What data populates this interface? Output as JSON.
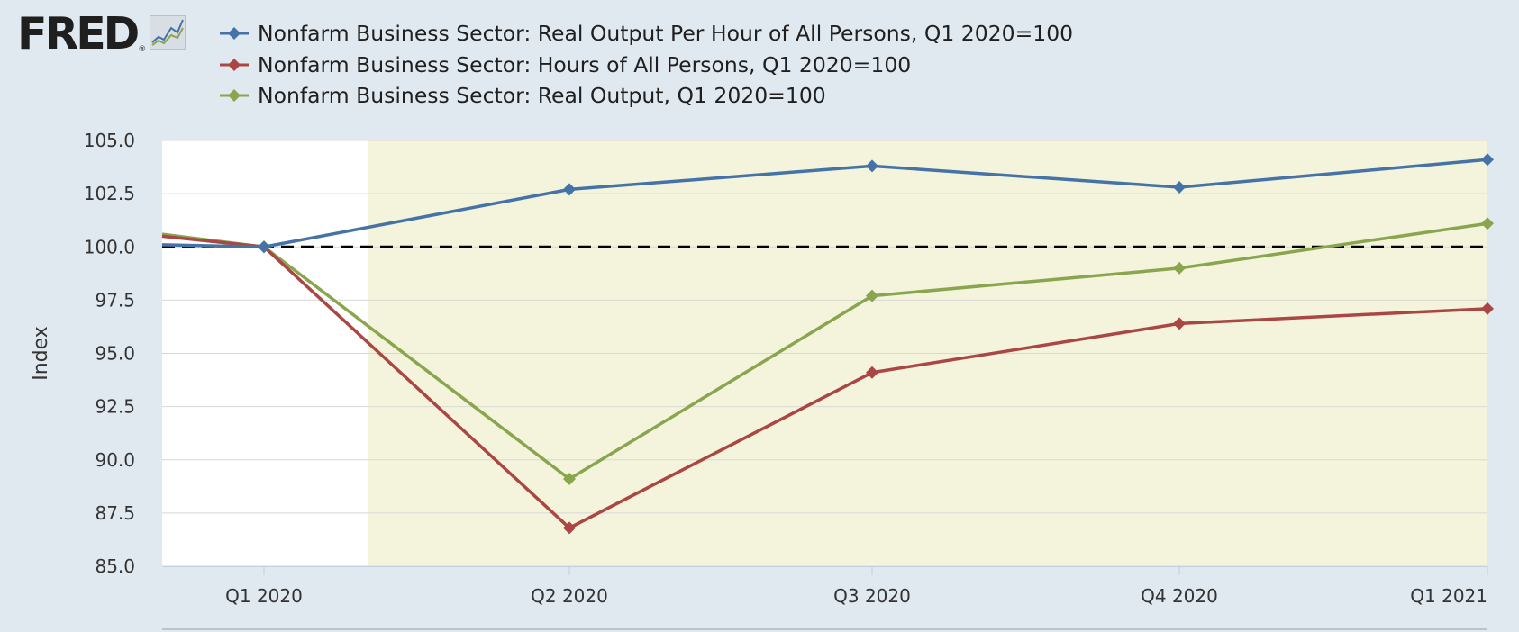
{
  "app": {
    "logo_text": "FRED",
    "logo_mark": "®",
    "logo_icon": "chart-line-icon"
  },
  "colors": {
    "background": "#e1e9f0",
    "plot_background": "#ffffff",
    "recession_shade": "#f4f4dc",
    "grid": "#d8d8d8",
    "series_blue": "#4572a7",
    "series_red": "#aa4643",
    "series_green": "#89a54e",
    "baseline": "#000000"
  },
  "chart_data": {
    "type": "line",
    "x": [
      "Q1 2020",
      "Q2 2020",
      "Q3 2020",
      "Q4 2020",
      "Q1 2021"
    ],
    "xlim": [
      "Q4 2019 (partial)",
      "Q1 2021"
    ],
    "ylabel": "Index",
    "ylim": [
      85,
      105
    ],
    "yticks": [
      "85.0",
      "87.5",
      "90.0",
      "92.5",
      "95.0",
      "97.5",
      "100.0",
      "102.5",
      "105.0"
    ],
    "grid": true,
    "legend_position": "top",
    "series": [
      {
        "name": "Nonfarm Business Sector: Real Output Per Hour of All Persons, Q1 2020=100",
        "color": "#4572a7",
        "lead_in": 100.1,
        "values": [
          100.0,
          102.7,
          103.8,
          102.8,
          104.1
        ]
      },
      {
        "name": "Nonfarm Business Sector: Hours of All Persons, Q1 2020=100",
        "color": "#aa4643",
        "lead_in": 100.5,
        "values": [
          100.0,
          86.8,
          94.1,
          96.4,
          97.1
        ]
      },
      {
        "name": "Nonfarm Business Sector: Real Output, Q1 2020=100",
        "color": "#89a54e",
        "lead_in": 100.6,
        "values": [
          100.0,
          89.1,
          97.7,
          99.0,
          101.1
        ]
      }
    ],
    "reference_line": {
      "value": 100.0,
      "style": "dashed"
    },
    "shaded_region": {
      "label": "recession",
      "from": "Q1 2020 (after)",
      "to": "Q1 2021"
    }
  }
}
